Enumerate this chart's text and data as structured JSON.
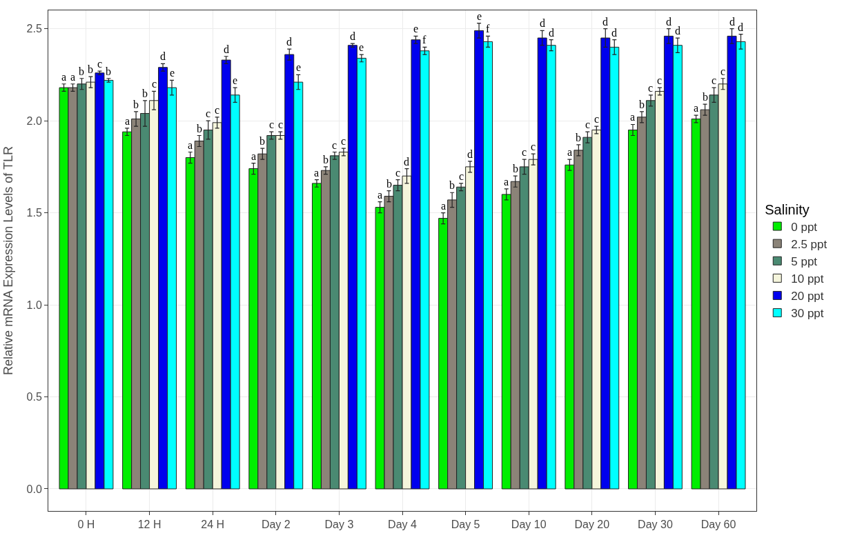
{
  "chart_data": {
    "type": "bar",
    "ylabel": "Relative mRNA Expression Levels of TLR",
    "legend_title": "Salinity",
    "categories": [
      "0 H",
      "12 H",
      "24 H",
      "Day 2",
      "Day 3",
      "Day 4",
      "Day 5",
      "Day 10",
      "Day 20",
      "Day 30",
      "Day 60"
    ],
    "ylim": [
      -0.12,
      2.6
    ],
    "yticks": [
      {
        "value": 0,
        "label": "0.0"
      },
      {
        "value": 0.5,
        "label": "0.5"
      },
      {
        "value": 1,
        "label": "1.0"
      },
      {
        "value": 1.5,
        "label": "1.5"
      },
      {
        "value": 2,
        "label": "2.0"
      },
      {
        "value": 2.5,
        "label": "2.5"
      }
    ],
    "grid": true,
    "legend": "right",
    "series": [
      {
        "name": "0 ppt",
        "color": "#00ee00",
        "values": [
          2.18,
          1.94,
          1.8,
          1.74,
          1.66,
          1.53,
          1.47,
          1.6,
          1.76,
          1.95,
          2.01
        ],
        "errors": [
          0.02,
          0.02,
          0.03,
          0.03,
          0.02,
          0.03,
          0.03,
          0.03,
          0.03,
          0.03,
          0.02
        ],
        "value_labels": [
          "a",
          "a",
          "a",
          "a",
          "a",
          "a",
          "a",
          "a",
          "a",
          "a",
          "a"
        ]
      },
      {
        "name": "2.5 ppt",
        "color": "#8b8378",
        "values": [
          2.18,
          2.01,
          1.89,
          1.82,
          1.73,
          1.59,
          1.57,
          1.67,
          1.84,
          2.02,
          2.06
        ],
        "errors": [
          0.02,
          0.04,
          0.03,
          0.03,
          0.02,
          0.03,
          0.04,
          0.03,
          0.03,
          0.03,
          0.03
        ],
        "value_labels": [
          "a",
          "b",
          "b",
          "b",
          "b",
          "b",
          "b",
          "b",
          "b",
          "b",
          "b"
        ]
      },
      {
        "name": "5 ppt",
        "color": "#4a8a72",
        "values": [
          2.2,
          2.04,
          1.95,
          1.92,
          1.81,
          1.65,
          1.64,
          1.75,
          1.91,
          2.11,
          2.14
        ],
        "errors": [
          0.03,
          0.07,
          0.05,
          0.02,
          0.02,
          0.03,
          0.02,
          0.04,
          0.03,
          0.03,
          0.04
        ],
        "value_labels": [
          "b",
          "b",
          "c",
          "c",
          "c",
          "c",
          "c",
          "c",
          "c",
          "c",
          "c"
        ]
      },
      {
        "name": "10 ppt",
        "color": "#f5f5dc",
        "values": [
          2.21,
          2.11,
          1.99,
          1.92,
          1.83,
          1.7,
          1.75,
          1.79,
          1.95,
          2.16,
          2.2
        ],
        "errors": [
          0.03,
          0.05,
          0.03,
          0.02,
          0.02,
          0.04,
          0.03,
          0.03,
          0.02,
          0.02,
          0.03
        ],
        "value_labels": [
          "b",
          "c",
          "c",
          "c",
          "c",
          "d",
          "d",
          "c",
          "c",
          "c",
          "c"
        ]
      },
      {
        "name": "20 ppt",
        "color": "#0000ee",
        "values": [
          2.26,
          2.29,
          2.33,
          2.36,
          2.41,
          2.44,
          2.49,
          2.45,
          2.45,
          2.46,
          2.46
        ],
        "errors": [
          0.01,
          0.02,
          0.02,
          0.03,
          0.01,
          0.02,
          0.04,
          0.04,
          0.05,
          0.04,
          0.04
        ],
        "value_labels": [
          "c",
          "d",
          "d",
          "d",
          "d",
          "e",
          "e",
          "d",
          "d",
          "d",
          "d"
        ]
      },
      {
        "name": "30 ppt",
        "color": "#00ffff",
        "values": [
          2.22,
          2.18,
          2.14,
          2.21,
          2.34,
          2.38,
          2.43,
          2.41,
          2.4,
          2.41,
          2.43
        ],
        "errors": [
          0.01,
          0.04,
          0.04,
          0.04,
          0.02,
          0.02,
          0.03,
          0.03,
          0.04,
          0.04,
          0.04
        ],
        "value_labels": [
          "b",
          "e",
          "e",
          "e",
          "e",
          "f",
          "f",
          "d",
          "d",
          "d",
          "d"
        ]
      }
    ]
  }
}
